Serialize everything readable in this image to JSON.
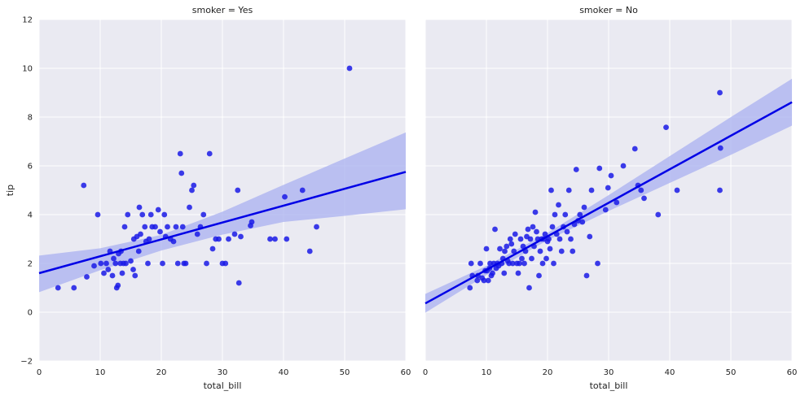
{
  "chart_data": [
    {
      "type": "scatter",
      "title": "smoker = Yes",
      "xlabel": "total_bill",
      "ylabel": "tip",
      "xlim": [
        0,
        60
      ],
      "ylim": [
        -2,
        12
      ],
      "xticks": [
        0,
        10,
        20,
        30,
        40,
        50,
        60
      ],
      "yticks": [
        -2,
        0,
        2,
        4,
        6,
        8,
        10,
        12
      ],
      "grid": true,
      "point_color": "#1a1ae6",
      "line_color": "#0000e6",
      "band_color": "#aab0f0",
      "regression": {
        "intercept": 1.6,
        "slope": 0.0692
      },
      "ci_band": [
        {
          "x": 0,
          "lo": 0.82,
          "hi": 2.32
        },
        {
          "x": 10,
          "lo": 1.72,
          "hi": 2.62
        },
        {
          "x": 20,
          "lo": 2.53,
          "hi": 3.17
        },
        {
          "x": 30,
          "lo": 3.18,
          "hi": 4.12
        },
        {
          "x": 40,
          "lo": 3.7,
          "hi": 5.22
        },
        {
          "x": 50,
          "lo": 3.95,
          "hi": 6.3
        },
        {
          "x": 60,
          "lo": 4.22,
          "hi": 7.37
        }
      ],
      "points": [
        [
          3.1,
          1.0
        ],
        [
          5.7,
          1.0
        ],
        [
          7.3,
          5.2
        ],
        [
          7.8,
          1.45
        ],
        [
          9.0,
          1.9
        ],
        [
          9.6,
          4.0
        ],
        [
          10.1,
          2.0
        ],
        [
          10.6,
          1.6
        ],
        [
          11.0,
          2.0
        ],
        [
          11.3,
          1.75
        ],
        [
          11.6,
          2.5
        ],
        [
          12.0,
          1.5
        ],
        [
          12.2,
          2.2
        ],
        [
          12.5,
          2.0
        ],
        [
          12.7,
          1.0
        ],
        [
          12.9,
          1.1
        ],
        [
          13.0,
          2.4
        ],
        [
          13.3,
          2.0
        ],
        [
          13.4,
          2.5
        ],
        [
          13.6,
          1.6
        ],
        [
          13.8,
          2.0
        ],
        [
          14.0,
          3.5
        ],
        [
          14.2,
          2.0
        ],
        [
          14.5,
          4.0
        ],
        [
          15.0,
          2.1
        ],
        [
          15.4,
          1.75
        ],
        [
          15.5,
          3.0
        ],
        [
          15.7,
          1.5
        ],
        [
          16.0,
          3.1
        ],
        [
          16.3,
          2.5
        ],
        [
          16.4,
          4.3
        ],
        [
          16.6,
          3.2
        ],
        [
          16.9,
          4.0
        ],
        [
          17.3,
          3.5
        ],
        [
          17.5,
          2.9
        ],
        [
          17.8,
          2.0
        ],
        [
          18.0,
          3.0
        ],
        [
          18.3,
          4.0
        ],
        [
          18.5,
          3.5
        ],
        [
          19.0,
          3.5
        ],
        [
          19.5,
          4.2
        ],
        [
          19.8,
          3.3
        ],
        [
          20.2,
          2.0
        ],
        [
          20.5,
          4.0
        ],
        [
          20.7,
          3.1
        ],
        [
          21.0,
          3.5
        ],
        [
          21.5,
          3.0
        ],
        [
          22.0,
          2.9
        ],
        [
          22.4,
          3.5
        ],
        [
          22.7,
          2.0
        ],
        [
          23.1,
          6.5
        ],
        [
          23.3,
          5.7
        ],
        [
          23.5,
          3.5
        ],
        [
          23.7,
          2.0
        ],
        [
          24.0,
          2.0
        ],
        [
          24.6,
          4.3
        ],
        [
          25.0,
          5.0
        ],
        [
          25.3,
          5.2
        ],
        [
          25.9,
          3.2
        ],
        [
          26.4,
          3.5
        ],
        [
          26.9,
          4.0
        ],
        [
          27.4,
          2.0
        ],
        [
          27.9,
          6.5
        ],
        [
          28.4,
          2.6
        ],
        [
          28.9,
          3.0
        ],
        [
          29.4,
          3.0
        ],
        [
          30.0,
          2.0
        ],
        [
          30.5,
          2.0
        ],
        [
          31.0,
          3.0
        ],
        [
          32.0,
          3.2
        ],
        [
          32.5,
          5.0
        ],
        [
          32.7,
          1.2
        ],
        [
          33.0,
          3.1
        ],
        [
          34.6,
          3.55
        ],
        [
          34.8,
          3.7
        ],
        [
          37.8,
          3.0
        ],
        [
          38.6,
          3.0
        ],
        [
          40.2,
          4.73
        ],
        [
          40.5,
          3.0
        ],
        [
          43.1,
          5.0
        ],
        [
          44.3,
          2.5
        ],
        [
          45.4,
          3.5
        ],
        [
          50.8,
          10.0
        ]
      ]
    },
    {
      "type": "scatter",
      "title": "smoker = No",
      "xlabel": "total_bill",
      "ylabel": "",
      "xlim": [
        0,
        60
      ],
      "ylim": [
        -2,
        12
      ],
      "xticks": [
        0,
        10,
        20,
        30,
        40,
        50,
        60
      ],
      "yticks": [
        -2,
        0,
        2,
        4,
        6,
        8,
        10,
        12
      ],
      "grid": true,
      "point_color": "#1a1ae6",
      "line_color": "#0000e6",
      "band_color": "#aab0f0",
      "regression": {
        "intercept": 0.36,
        "slope": 0.1375
      },
      "ci_band": [
        {
          "x": 0,
          "lo": -0.02,
          "hi": 0.75
        },
        {
          "x": 10,
          "lo": 1.52,
          "hi": 1.9
        },
        {
          "x": 20,
          "lo": 2.95,
          "hi": 3.25
        },
        {
          "x": 30,
          "lo": 4.15,
          "hi": 4.8
        },
        {
          "x": 40,
          "lo": 5.3,
          "hi": 6.4
        },
        {
          "x": 50,
          "lo": 6.45,
          "hi": 8.0
        },
        {
          "x": 60,
          "lo": 7.65,
          "hi": 9.57
        }
      ],
      "points": [
        [
          7.3,
          1.0
        ],
        [
          7.5,
          2.0
        ],
        [
          7.7,
          1.5
        ],
        [
          8.5,
          1.3
        ],
        [
          8.6,
          1.5
        ],
        [
          9.0,
          2.0
        ],
        [
          9.3,
          1.4
        ],
        [
          9.6,
          1.3
        ],
        [
          9.8,
          1.7
        ],
        [
          10.0,
          2.6
        ],
        [
          10.1,
          1.7
        ],
        [
          10.3,
          1.3
        ],
        [
          10.5,
          1.8
        ],
        [
          10.6,
          2.0
        ],
        [
          10.8,
          1.5
        ],
        [
          11.0,
          1.6
        ],
        [
          11.2,
          2.0
        ],
        [
          11.4,
          3.4
        ],
        [
          11.6,
          1.8
        ],
        [
          11.8,
          2.0
        ],
        [
          12.0,
          1.9
        ],
        [
          12.2,
          2.6
        ],
        [
          12.5,
          2.0
        ],
        [
          12.7,
          2.2
        ],
        [
          12.9,
          1.6
        ],
        [
          13.0,
          2.5
        ],
        [
          13.3,
          2.7
        ],
        [
          13.5,
          2.1
        ],
        [
          13.7,
          2.0
        ],
        [
          13.9,
          3.0
        ],
        [
          14.1,
          2.8
        ],
        [
          14.3,
          2.0
        ],
        [
          14.5,
          2.5
        ],
        [
          14.7,
          3.2
        ],
        [
          15.0,
          2.0
        ],
        [
          15.2,
          1.6
        ],
        [
          15.4,
          2.0
        ],
        [
          15.6,
          3.0
        ],
        [
          15.8,
          2.2
        ],
        [
          16.0,
          2.7
        ],
        [
          16.2,
          2.0
        ],
        [
          16.4,
          2.5
        ],
        [
          16.6,
          3.1
        ],
        [
          16.8,
          3.4
        ],
        [
          17.0,
          1.0
        ],
        [
          17.2,
          3.0
        ],
        [
          17.4,
          2.2
        ],
        [
          17.6,
          3.5
        ],
        [
          17.8,
          2.7
        ],
        [
          18.0,
          4.1
        ],
        [
          18.2,
          3.3
        ],
        [
          18.4,
          3.0
        ],
        [
          18.6,
          1.5
        ],
        [
          18.8,
          2.5
        ],
        [
          19.0,
          3.0
        ],
        [
          19.2,
          2.0
        ],
        [
          19.4,
          3.0
        ],
        [
          19.6,
          3.2
        ],
        [
          19.8,
          2.2
        ],
        [
          20.0,
          2.9
        ],
        [
          20.2,
          3.0
        ],
        [
          20.4,
          2.6
        ],
        [
          20.6,
          5.0
        ],
        [
          20.8,
          3.5
        ],
        [
          21.0,
          2.0
        ],
        [
          21.2,
          4.0
        ],
        [
          21.5,
          3.2
        ],
        [
          21.8,
          4.4
        ],
        [
          22.0,
          3.0
        ],
        [
          22.3,
          2.5
        ],
        [
          22.6,
          3.5
        ],
        [
          22.9,
          4.0
        ],
        [
          23.2,
          3.3
        ],
        [
          23.5,
          5.0
        ],
        [
          23.8,
          3.0
        ],
        [
          24.1,
          2.5
        ],
        [
          24.4,
          3.6
        ],
        [
          24.7,
          5.85
        ],
        [
          25.0,
          3.75
        ],
        [
          25.3,
          4.0
        ],
        [
          25.7,
          3.7
        ],
        [
          26.0,
          4.3
        ],
        [
          26.4,
          1.5
        ],
        [
          26.9,
          3.1
        ],
        [
          27.2,
          5.0
        ],
        [
          28.2,
          2.0
        ],
        [
          28.5,
          5.9
        ],
        [
          29.5,
          4.2
        ],
        [
          29.9,
          5.1
        ],
        [
          30.4,
          5.6
        ],
        [
          31.3,
          4.5
        ],
        [
          32.4,
          6.0
        ],
        [
          34.3,
          6.7
        ],
        [
          34.8,
          5.2
        ],
        [
          35.3,
          5.0
        ],
        [
          35.8,
          4.67
        ],
        [
          38.1,
          4.0
        ],
        [
          39.4,
          7.58
        ],
        [
          41.2,
          5.0
        ],
        [
          48.2,
          9.0
        ],
        [
          48.3,
          6.73
        ],
        [
          48.2,
          5.0
        ]
      ]
    }
  ]
}
